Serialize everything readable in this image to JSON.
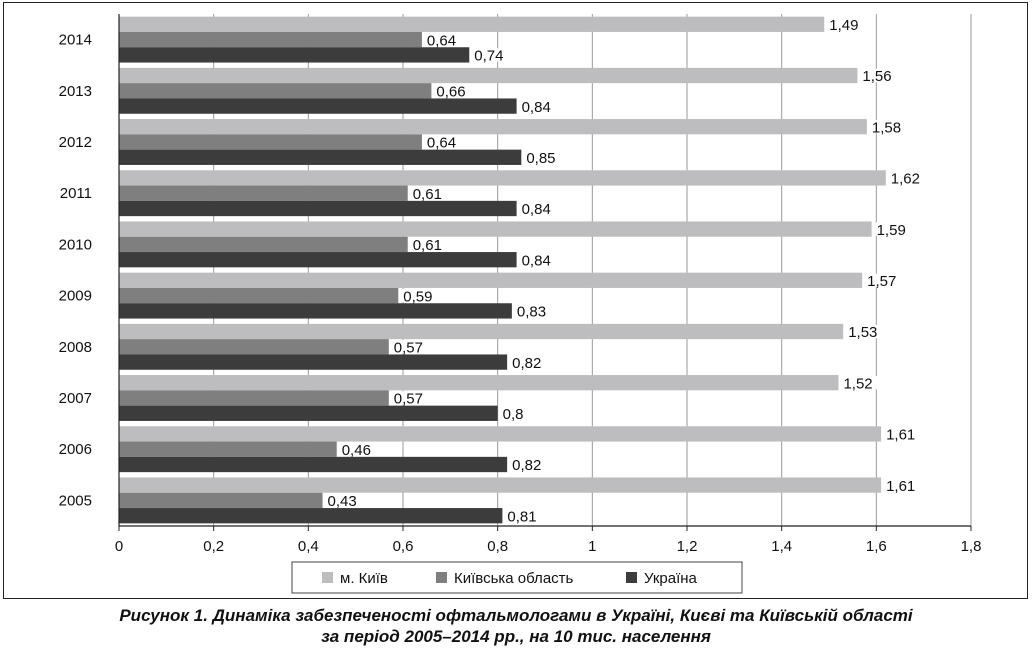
{
  "chart_data": {
    "type": "bar",
    "orientation": "horizontal",
    "categories": [
      "2005",
      "2006",
      "2007",
      "2008",
      "2009",
      "2010",
      "2011",
      "2012",
      "2013",
      "2014"
    ],
    "series": [
      {
        "name": "м. Київ",
        "color": "#bdbdbf",
        "values": [
          1.61,
          1.61,
          1.52,
          1.53,
          1.57,
          1.59,
          1.62,
          1.58,
          1.56,
          1.49
        ],
        "labels": [
          "1,61",
          "1,61",
          "1,52",
          "1,53",
          "1,57",
          "1,59",
          "1,62",
          "1,58",
          "1,56",
          "1,49"
        ]
      },
      {
        "name": "Київська область",
        "color": "#7f7f80",
        "values": [
          0.43,
          0.46,
          0.57,
          0.57,
          0.59,
          0.61,
          0.61,
          0.64,
          0.66,
          0.64
        ],
        "labels": [
          "0,43",
          "0,46",
          "0,57",
          "0,57",
          "0,59",
          "0,61",
          "0,61",
          "0,64",
          "0,66",
          "0,64"
        ]
      },
      {
        "name": "Україна",
        "color": "#3c3c3c",
        "values": [
          0.81,
          0.82,
          0.8,
          0.82,
          0.83,
          0.84,
          0.84,
          0.85,
          0.84,
          0.74
        ],
        "labels": [
          "0,81",
          "0,82",
          "0,8",
          "0,82",
          "0,83",
          "0,84",
          "0,84",
          "0,85",
          "0,84",
          "0,74"
        ]
      }
    ],
    "xlim": [
      0,
      1.8
    ],
    "xticks": [
      0,
      0.2,
      0.4,
      0.6,
      0.8,
      1,
      1.2,
      1.4,
      1.6,
      1.8
    ],
    "xtick_labels": [
      "0",
      "0,2",
      "0,4",
      "0,6",
      "0,8",
      "1",
      "1,2",
      "1,4",
      "1,6",
      "1,8"
    ],
    "legend_position": "bottom",
    "grid": "vertical",
    "title": "Рисунок 1.  Динаміка забезпеченості офтальмологами в Україні, Києві та Київській області",
    "subtitle": "за період 2005–2014 рр., на 10 тис. населення"
  }
}
